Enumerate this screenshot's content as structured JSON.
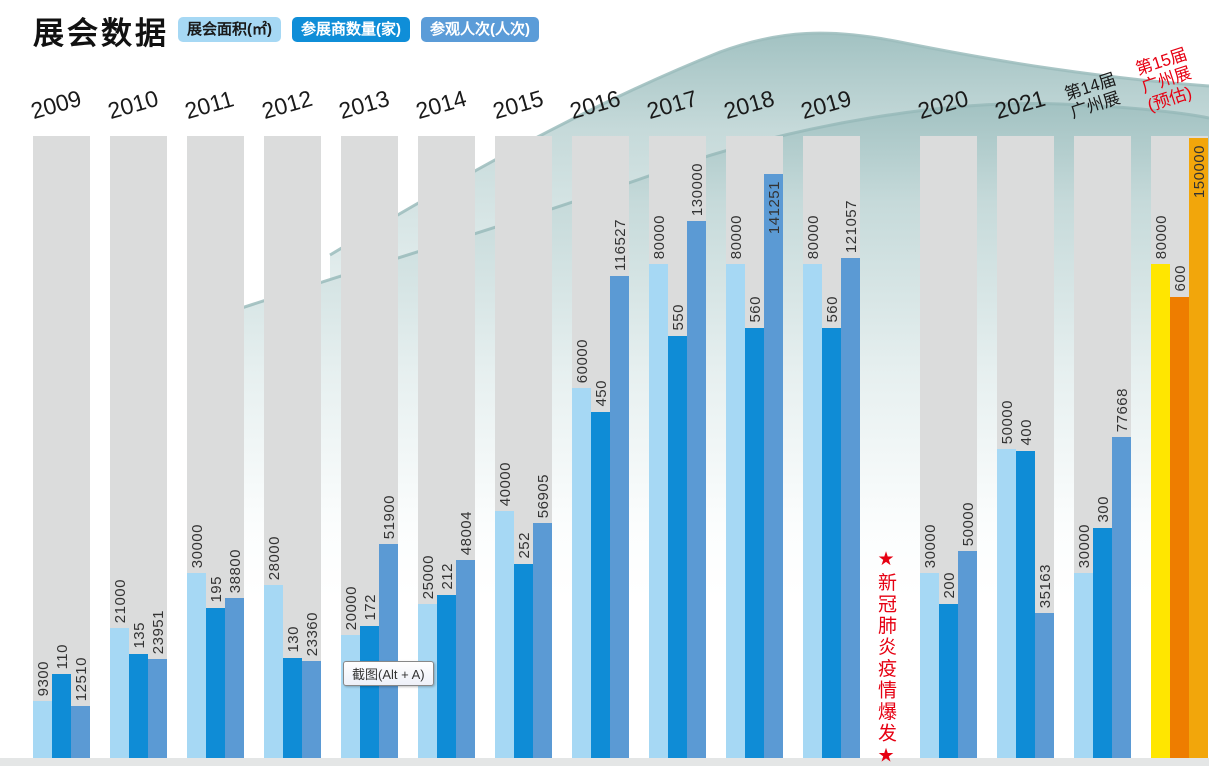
{
  "page": {
    "title": "展会数据"
  },
  "legend": [
    {
      "label": "展会面积(㎡)",
      "bg": "#a6d8f4",
      "text_color": "#1a1a1a"
    },
    {
      "label": "参展商数量(家)",
      "bg": "#0f8ed8",
      "text_color": "#ffffff"
    },
    {
      "label": "参观人次(人次)",
      "bg": "#5b9cd8",
      "text_color": "#ffffff"
    }
  ],
  "annotation": {
    "text": "★新冠肺炎疫情爆发★",
    "color": "#e60012"
  },
  "tooltip": {
    "label": "截图(Alt + A)"
  },
  "chart_data": {
    "type": "bar",
    "title": "展会数据",
    "legend_position": "top",
    "grid": false,
    "categories": [
      "2009",
      "2010",
      "2011",
      "2012",
      "2013",
      "2014",
      "2015",
      "2016",
      "2017",
      "2018",
      "2019",
      "2020",
      "2021",
      "第14届广州展",
      "第15届广州展(预估)"
    ],
    "category_display": [
      {
        "text": "2009"
      },
      {
        "text": "2010"
      },
      {
        "text": "2011"
      },
      {
        "text": "2012"
      },
      {
        "text": "2013"
      },
      {
        "text": "2014"
      },
      {
        "text": "2015"
      },
      {
        "text": "2016"
      },
      {
        "text": "2017"
      },
      {
        "text": "2018"
      },
      {
        "text": "2019"
      },
      {
        "text": "2020"
      },
      {
        "text": "2021"
      },
      {
        "text": "第14届\n广州展",
        "small": true,
        "color": "#1a1a1a"
      },
      {
        "text": "第15届\n广州展\n(预估)",
        "small": true,
        "color": "#e60012"
      }
    ],
    "series": [
      {
        "name": "展会面积(㎡)",
        "color": "#a6d8f4",
        "forecast_color": "#ffe600",
        "scale_max": 100800,
        "values": [
          9300,
          21000,
          30000,
          28000,
          20000,
          25000,
          40000,
          60000,
          80000,
          80000,
          80000,
          30000,
          50000,
          30000,
          80000
        ]
      },
      {
        "name": "参展商数量(家)",
        "color": "#0f8cd6",
        "forecast_color": "#ee7d00",
        "scale_max": 810,
        "values": [
          110,
          135,
          195,
          130,
          172,
          212,
          252,
          450,
          550,
          560,
          560,
          200,
          400,
          300,
          600
        ]
      },
      {
        "name": "参观人次(人次)",
        "color": "#5b9ad4",
        "forecast_color": "#f2a60b",
        "scale_max": 150500,
        "values": [
          12510,
          23951,
          38800,
          23360,
          51900,
          48004,
          56905,
          116527,
          130000,
          141251,
          121057,
          50000,
          35163,
          77668,
          150000
        ]
      }
    ],
    "annotations": [
      {
        "text": "★新冠肺炎疫情爆发★",
        "before_category": "2020",
        "color": "#e60012"
      }
    ]
  }
}
